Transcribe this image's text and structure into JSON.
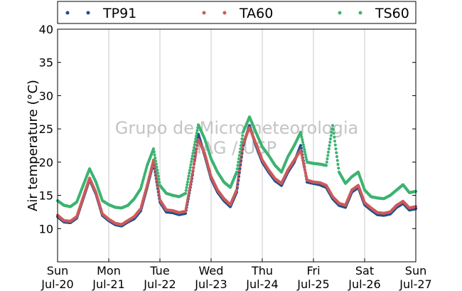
{
  "chart_data": {
    "type": "scatter",
    "title": "",
    "ylabel": "Air temperature (°C)",
    "xlabel": "",
    "ylim": [
      5,
      40
    ],
    "yticks": [
      10,
      15,
      20,
      25,
      30,
      35,
      40
    ],
    "xlim": [
      "2014-07-20 00:00",
      "2014-07-27 00:00"
    ],
    "x_tick_labels": [
      {
        "day": "Sun",
        "date": "Jul-20"
      },
      {
        "day": "Mon",
        "date": "Jul-21"
      },
      {
        "day": "Tue",
        "date": "Jul-22"
      },
      {
        "day": "Wed",
        "date": "Jul-23"
      },
      {
        "day": "Thu",
        "date": "Jul-24"
      },
      {
        "day": "Fri",
        "date": "Jul-25"
      },
      {
        "day": "Sat",
        "date": "Jul-26"
      },
      {
        "day": "Sun",
        "date": "Jul-27"
      }
    ],
    "grid": "vertical",
    "legend_position": "top",
    "watermark": [
      "Grupo de Micrometeorologia",
      "IAG / USP"
    ],
    "series": [
      {
        "name": "TP91",
        "color": "#1f4e8c",
        "x": [
          "2014-07-20 00:00",
          "2014-07-20 03:00",
          "2014-07-20 06:00",
          "2014-07-20 09:00",
          "2014-07-20 12:00",
          "2014-07-20 15:00",
          "2014-07-20 18:00",
          "2014-07-20 21:00",
          "2014-07-21 00:00",
          "2014-07-21 03:00",
          "2014-07-21 06:00",
          "2014-07-21 09:00",
          "2014-07-21 12:00",
          "2014-07-21 15:00",
          "2014-07-21 18:00",
          "2014-07-21 21:00",
          "2014-07-22 00:00",
          "2014-07-22 03:00",
          "2014-07-22 06:00",
          "2014-07-22 09:00",
          "2014-07-22 12:00",
          "2014-07-22 15:00",
          "2014-07-22 18:00",
          "2014-07-22 21:00",
          "2014-07-23 00:00",
          "2014-07-23 03:00",
          "2014-07-23 06:00",
          "2014-07-23 09:00",
          "2014-07-23 12:00",
          "2014-07-23 15:00",
          "2014-07-23 18:00",
          "2014-07-23 21:00",
          "2014-07-24 00:00",
          "2014-07-24 03:00",
          "2014-07-24 06:00",
          "2014-07-24 09:00",
          "2014-07-24 12:00",
          "2014-07-24 15:00",
          "2014-07-24 18:00",
          "2014-07-24 21:00",
          "2014-07-25 00:00",
          "2014-07-25 03:00",
          "2014-07-25 06:00",
          "2014-07-25 09:00",
          "2014-07-25 12:00",
          "2014-07-25 15:00",
          "2014-07-25 18:00",
          "2014-07-25 21:00",
          "2014-07-26 00:00",
          "2014-07-26 03:00",
          "2014-07-26 06:00",
          "2014-07-26 09:00",
          "2014-07-26 12:00",
          "2014-07-26 15:00",
          "2014-07-26 18:00",
          "2014-07-26 21:00",
          "2014-07-27 00:00"
        ],
        "y": [
          11.8,
          11.0,
          10.9,
          11.6,
          14.5,
          17.4,
          15.2,
          12.0,
          11.2,
          10.6,
          10.4,
          11.0,
          11.5,
          12.7,
          16.2,
          20.0,
          14.0,
          12.5,
          12.4,
          12.1,
          12.3,
          17.5,
          24.2,
          21.0,
          17.5,
          15.5,
          14.2,
          13.3,
          15.5,
          22.5,
          25.5,
          22.5,
          20.0,
          18.5,
          17.2,
          16.5,
          18.5,
          20.0,
          22.5,
          17.0,
          16.8,
          16.6,
          16.2,
          14.5,
          13.5,
          13.2,
          15.5,
          16.2,
          13.6,
          12.8,
          12.1,
          12.0,
          12.2,
          13.2,
          13.8,
          12.8,
          13.0
        ]
      },
      {
        "name": "TA60",
        "color": "#cc5a5a",
        "x": [
          "2014-07-20 00:00",
          "2014-07-20 03:00",
          "2014-07-20 06:00",
          "2014-07-20 09:00",
          "2014-07-20 12:00",
          "2014-07-20 15:00",
          "2014-07-20 18:00",
          "2014-07-20 21:00",
          "2014-07-21 00:00",
          "2014-07-21 03:00",
          "2014-07-21 06:00",
          "2014-07-21 09:00",
          "2014-07-21 12:00",
          "2014-07-21 15:00",
          "2014-07-21 18:00",
          "2014-07-21 21:00",
          "2014-07-22 00:00",
          "2014-07-22 03:00",
          "2014-07-22 06:00",
          "2014-07-22 09:00",
          "2014-07-22 12:00",
          "2014-07-22 15:00",
          "2014-07-22 18:00",
          "2014-07-22 21:00",
          "2014-07-23 00:00",
          "2014-07-23 03:00",
          "2014-07-23 06:00",
          "2014-07-23 09:00",
          "2014-07-23 12:00",
          "2014-07-23 15:00",
          "2014-07-23 18:00",
          "2014-07-23 21:00",
          "2014-07-24 00:00",
          "2014-07-24 03:00",
          "2014-07-24 06:00",
          "2014-07-24 09:00",
          "2014-07-24 12:00",
          "2014-07-24 15:00",
          "2014-07-24 18:00",
          "2014-07-24 21:00",
          "2014-07-25 00:00",
          "2014-07-25 03:00",
          "2014-07-25 06:00",
          "2014-07-25 09:00",
          "2014-07-25 12:00",
          "2014-07-25 15:00",
          "2014-07-25 18:00",
          "2014-07-25 21:00",
          "2014-07-26 00:00",
          "2014-07-26 03:00",
          "2014-07-26 06:00",
          "2014-07-26 09:00",
          "2014-07-26 12:00",
          "2014-07-26 15:00",
          "2014-07-26 18:00",
          "2014-07-26 21:00",
          "2014-07-27 00:00"
        ],
        "y": [
          12.0,
          11.2,
          11.1,
          11.8,
          14.7,
          17.6,
          15.4,
          12.2,
          11.4,
          10.8,
          10.6,
          11.2,
          11.8,
          13.0,
          16.5,
          20.3,
          14.3,
          12.8,
          12.7,
          12.4,
          12.6,
          17.8,
          23.4,
          21.3,
          17.8,
          15.8,
          14.5,
          13.6,
          15.8,
          22.8,
          25.2,
          22.8,
          20.3,
          18.8,
          17.5,
          16.8,
          18.8,
          20.3,
          21.8,
          17.3,
          17.0,
          16.9,
          16.5,
          14.8,
          13.8,
          13.5,
          15.8,
          16.5,
          13.9,
          13.1,
          12.4,
          12.3,
          12.5,
          13.5,
          14.1,
          13.1,
          13.3
        ]
      },
      {
        "name": "TS60",
        "color": "#3cb371",
        "x": [
          "2014-07-20 00:00",
          "2014-07-20 03:00",
          "2014-07-20 06:00",
          "2014-07-20 09:00",
          "2014-07-20 12:00",
          "2014-07-20 15:00",
          "2014-07-20 18:00",
          "2014-07-20 21:00",
          "2014-07-21 00:00",
          "2014-07-21 03:00",
          "2014-07-21 06:00",
          "2014-07-21 09:00",
          "2014-07-21 12:00",
          "2014-07-21 15:00",
          "2014-07-21 18:00",
          "2014-07-21 21:00",
          "2014-07-22 00:00",
          "2014-07-22 03:00",
          "2014-07-22 06:00",
          "2014-07-22 09:00",
          "2014-07-22 12:00",
          "2014-07-22 15:00",
          "2014-07-22 18:00",
          "2014-07-22 21:00",
          "2014-07-23 00:00",
          "2014-07-23 03:00",
          "2014-07-23 06:00",
          "2014-07-23 09:00",
          "2014-07-23 12:00",
          "2014-07-23 15:00",
          "2014-07-23 18:00",
          "2014-07-23 21:00",
          "2014-07-24 00:00",
          "2014-07-24 03:00",
          "2014-07-24 06:00",
          "2014-07-24 09:00",
          "2014-07-24 12:00",
          "2014-07-24 15:00",
          "2014-07-24 18:00",
          "2014-07-24 21:00",
          "2014-07-25 00:00",
          "2014-07-25 03:00",
          "2014-07-25 06:00",
          "2014-07-25 09:00",
          "2014-07-25 12:00",
          "2014-07-25 15:00",
          "2014-07-25 18:00",
          "2014-07-25 21:00",
          "2014-07-26 00:00",
          "2014-07-26 03:00",
          "2014-07-26 06:00",
          "2014-07-26 09:00",
          "2014-07-26 12:00",
          "2014-07-26 15:00",
          "2014-07-26 18:00",
          "2014-07-26 21:00",
          "2014-07-27 00:00"
        ],
        "y": [
          14.2,
          13.5,
          13.3,
          14.0,
          16.5,
          19.0,
          17.0,
          14.2,
          13.6,
          13.2,
          13.1,
          13.5,
          14.5,
          16.0,
          19.5,
          22.0,
          16.5,
          15.3,
          15.0,
          14.8,
          15.3,
          20.5,
          25.6,
          23.5,
          20.5,
          18.5,
          17.0,
          16.2,
          18.5,
          24.5,
          26.8,
          24.5,
          22.3,
          21.0,
          19.5,
          18.5,
          20.8,
          22.5,
          24.5,
          20.0,
          19.8,
          19.7,
          19.5,
          25.5,
          18.5,
          16.8,
          17.8,
          18.5,
          15.8,
          14.8,
          14.6,
          14.5,
          15.0,
          15.8,
          16.6,
          15.4,
          15.6
        ]
      }
    ]
  }
}
